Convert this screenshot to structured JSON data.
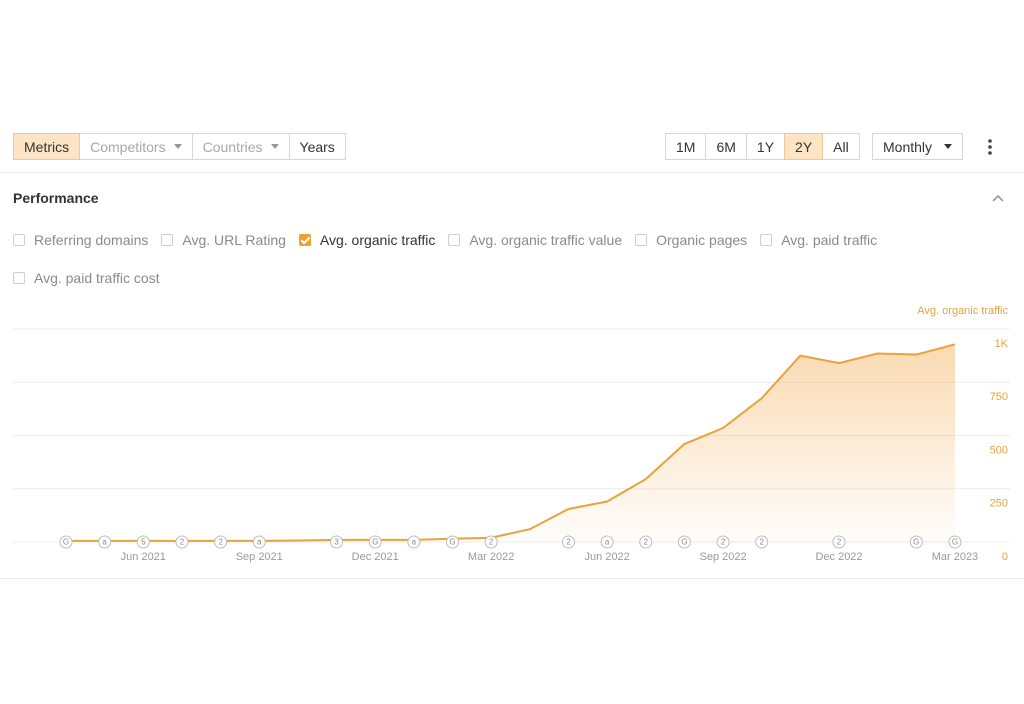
{
  "toolbar": {
    "tabs": [
      {
        "label": "Metrics",
        "active": true,
        "dropdown": false,
        "disabled": false
      },
      {
        "label": "Competitors",
        "active": false,
        "dropdown": true,
        "disabled": true
      },
      {
        "label": "Countries",
        "active": false,
        "dropdown": true,
        "disabled": true
      },
      {
        "label": "Years",
        "active": false,
        "dropdown": false,
        "disabled": false
      }
    ],
    "ranges": [
      {
        "label": "1M",
        "active": false
      },
      {
        "label": "6M",
        "active": false
      },
      {
        "label": "1Y",
        "active": false
      },
      {
        "label": "2Y",
        "active": true
      },
      {
        "label": "All",
        "active": false
      }
    ],
    "interval": "Monthly"
  },
  "section": {
    "title": "Performance",
    "metrics": [
      {
        "label": "Referring domains",
        "checked": false
      },
      {
        "label": "Avg. URL Rating",
        "checked": false
      },
      {
        "label": "Avg. organic traffic",
        "checked": true
      },
      {
        "label": "Avg. organic traffic value",
        "checked": false
      },
      {
        "label": "Organic pages",
        "checked": false
      },
      {
        "label": "Avg. paid traffic",
        "checked": false
      },
      {
        "label": "Avg. paid traffic cost",
        "checked": false
      }
    ]
  },
  "chart_data": {
    "type": "area",
    "categories": [
      null,
      null,
      "Jun 2021",
      null,
      null,
      "Sep 2021",
      null,
      null,
      "Dec 2021",
      null,
      null,
      "Mar 2022",
      null,
      null,
      "Jun 2022",
      null,
      null,
      "Sep 2022",
      null,
      null,
      "Dec 2022",
      null,
      null,
      "Mar 2023"
    ],
    "events": [
      "G",
      "a",
      "5",
      "2",
      "2",
      "a",
      null,
      "3",
      "G",
      "a",
      "G",
      "2",
      null,
      "2",
      "a",
      "2",
      "G",
      "2",
      "2",
      null,
      "2",
      null,
      "G",
      "G"
    ],
    "series": [
      {
        "name": "Avg. organic traffic",
        "color": "#e8a33d",
        "values": [
          5,
          5,
          5,
          5,
          5,
          5,
          7,
          10,
          10,
          10,
          15,
          20,
          60,
          155,
          190,
          295,
          460,
          535,
          675,
          875,
          840,
          885,
          880,
          928
        ]
      }
    ],
    "ylim": [
      0,
      1000
    ],
    "yticks": [
      0,
      250,
      500,
      750,
      {
        "value": 1000,
        "label": "1K"
      }
    ],
    "grid": true
  }
}
